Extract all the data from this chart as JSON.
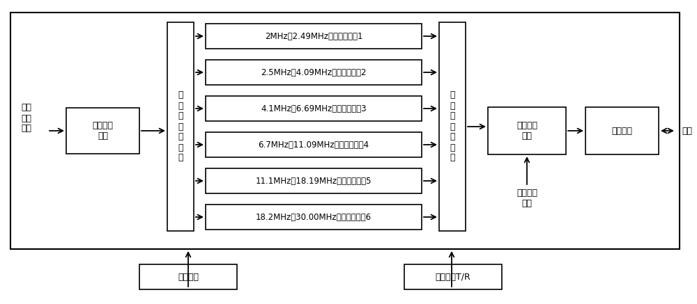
{
  "bg_color": "#ffffff",
  "border_color": "#000000",
  "text_color": "#000000",
  "filter_branches": [
    "2MHz～2.49MHz低通滤波支路1",
    "2.5MHz～4.09MHz低通滤波支路2",
    "4.1MHz～6.69MHz低通滤波支路3",
    "6.7MHz～11.09MHz低通滤波支路4",
    "11.1MHz～18.19MHz低通滤波支路5",
    "18.2MHz～30.00MHz低通滤波支路6"
  ],
  "label_xinkou": "信号\n输入\n端口",
  "label_power_amp": "功率放大\n电路",
  "label_mux1": "多\n选\n一\n射\n频\n开\n关",
  "label_mux2": "多\n选\n一\n射\n频\n开\n关",
  "label_transceiver": "收发开关\n电路",
  "label_coupler": "定耦电路",
  "label_antenna": "天线",
  "label_power_supply": "供电电路",
  "label_control": "控制端口T/R",
  "label_signal_rx": "信号接收\n端口",
  "font_size": 9,
  "font_size_small": 8.5
}
